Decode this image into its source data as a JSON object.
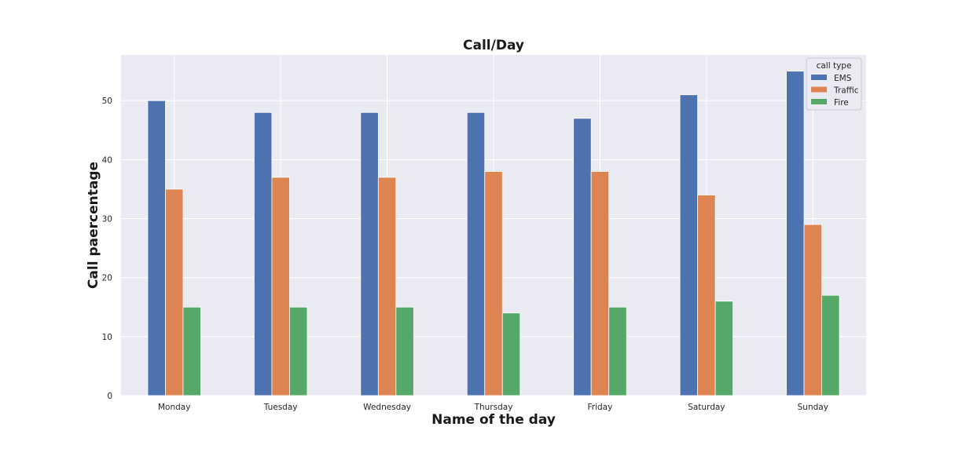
{
  "chart_data": {
    "type": "bar",
    "title": "Call/Day",
    "xlabel": "Name of the day",
    "ylabel": "Call paercentage",
    "categories": [
      "Monday",
      "Tuesday",
      "Wednesday",
      "Thursday",
      "Friday",
      "Saturday",
      "Sunday"
    ],
    "series": [
      {
        "name": "EMS",
        "color": "#4c72b0",
        "values": [
          50,
          48,
          48,
          48,
          47,
          51,
          55
        ]
      },
      {
        "name": "Traffic",
        "color": "#dd8452",
        "values": [
          35,
          37,
          37,
          38,
          38,
          34,
          29
        ]
      },
      {
        "name": "Fire",
        "color": "#55a868",
        "values": [
          15,
          15,
          15,
          14,
          15,
          16,
          17
        ]
      }
    ],
    "ylim": [
      0,
      57.75
    ],
    "yticks": [
      0,
      10,
      20,
      30,
      40,
      50
    ],
    "grid": true,
    "background": "#eaeaf2",
    "legend": {
      "title": "call type",
      "placement": "top-right"
    }
  }
}
